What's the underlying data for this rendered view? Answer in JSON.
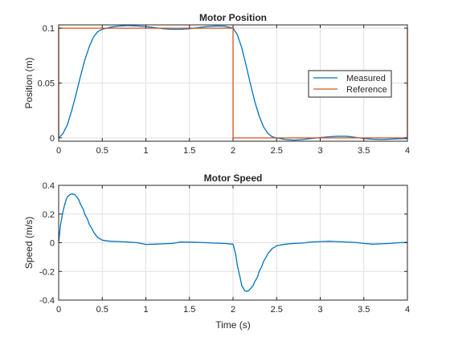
{
  "colors": {
    "measured": "#0072BD",
    "reference": "#D95319",
    "axis": "#262626",
    "grid": "#dfdfdf"
  },
  "chart_data": [
    {
      "type": "line",
      "title": "Motor Position",
      "xlabel": "",
      "ylabel": "Position (m)",
      "xlim": [
        0,
        4
      ],
      "ylim": [
        -0.003,
        0.103
      ],
      "xticks": [
        0,
        0.5,
        1,
        1.5,
        2,
        2.5,
        3,
        3.5,
        4
      ],
      "xticklabels": [
        "0",
        "0.5",
        "1",
        "1.5",
        "2",
        "2.5",
        "3",
        "3.5",
        "4"
      ],
      "yticks": [
        0,
        0.05,
        0.1
      ],
      "yticklabels": [
        "0",
        "0.05",
        "0.1"
      ],
      "grid": true,
      "legend": "center-right",
      "series": [
        {
          "name": "Measured",
          "color": "#0072BD",
          "x": [
            0,
            0.05,
            0.1,
            0.15,
            0.2,
            0.25,
            0.3,
            0.35,
            0.4,
            0.45,
            0.5,
            0.6,
            0.7,
            0.8,
            0.9,
            1.0,
            1.1,
            1.2,
            1.3,
            1.4,
            1.5,
            1.6,
            1.7,
            1.8,
            1.9,
            2.0,
            2.05,
            2.1,
            2.15,
            2.2,
            2.25,
            2.3,
            2.35,
            2.4,
            2.45,
            2.5,
            2.6,
            2.7,
            2.8,
            2.9,
            3.0,
            3.1,
            3.2,
            3.3,
            3.4,
            3.5,
            3.6,
            3.7,
            3.8,
            3.9,
            4.0
          ],
          "y": [
            0,
            0.004,
            0.012,
            0.025,
            0.04,
            0.056,
            0.071,
            0.083,
            0.092,
            0.097,
            0.099,
            0.101,
            0.102,
            0.1025,
            0.102,
            0.1015,
            0.1005,
            0.0995,
            0.099,
            0.099,
            0.0995,
            0.1005,
            0.1015,
            0.102,
            0.1018,
            0.1,
            0.094,
            0.082,
            0.066,
            0.049,
            0.033,
            0.02,
            0.01,
            0.004,
            0.001,
            0,
            -0.0015,
            -0.002,
            -0.0015,
            -0.0005,
            0.0003,
            0.001,
            0.0015,
            0.0015,
            0.0005,
            -0.0005,
            -0.0012,
            -0.0015,
            -0.0012,
            -0.0008,
            -0.0005
          ]
        },
        {
          "name": "Reference",
          "color": "#D95319",
          "x": [
            0,
            0,
            2,
            2,
            4,
            4
          ],
          "y": [
            0,
            0.1,
            0.1,
            0,
            0,
            0.1
          ]
        }
      ]
    },
    {
      "type": "line",
      "title": "Motor Speed",
      "xlabel": "Time (s)",
      "ylabel": "Speed (m/s)",
      "xlim": [
        0,
        4
      ],
      "ylim": [
        -0.4,
        0.4
      ],
      "xticks": [
        0,
        0.5,
        1,
        1.5,
        2,
        2.5,
        3,
        3.5,
        4
      ],
      "xticklabels": [
        "0",
        "0.5",
        "1",
        "1.5",
        "2",
        "2.5",
        "3",
        "3.5",
        "4"
      ],
      "yticks": [
        -0.4,
        -0.2,
        0,
        0.2,
        0.4
      ],
      "yticklabels": [
        "-0.4",
        "-0.2",
        "0",
        "0.2",
        "0.4"
      ],
      "grid": true,
      "series": [
        {
          "color": "#0072BD",
          "x": [
            0,
            0.02,
            0.05,
            0.08,
            0.1,
            0.13,
            0.15,
            0.18,
            0.2,
            0.23,
            0.25,
            0.28,
            0.3,
            0.33,
            0.35,
            0.38,
            0.4,
            0.43,
            0.45,
            0.48,
            0.5,
            0.55,
            0.6,
            0.7,
            0.8,
            0.9,
            1.0,
            1.1,
            1.2,
            1.3,
            1.4,
            1.5,
            1.6,
            1.7,
            1.8,
            1.9,
            2.0,
            2.03,
            2.05,
            2.08,
            2.1,
            2.13,
            2.15,
            2.18,
            2.2,
            2.23,
            2.25,
            2.28,
            2.3,
            2.33,
            2.35,
            2.38,
            2.4,
            2.43,
            2.45,
            2.48,
            2.5,
            2.55,
            2.6,
            2.7,
            2.8,
            2.9,
            3.0,
            3.1,
            3.2,
            3.3,
            3.4,
            3.5,
            3.6,
            3.7,
            3.8,
            3.9,
            4.0
          ],
          "y": [
            0,
            0.12,
            0.22,
            0.29,
            0.32,
            0.335,
            0.34,
            0.338,
            0.325,
            0.3,
            0.27,
            0.235,
            0.2,
            0.165,
            0.13,
            0.1,
            0.075,
            0.05,
            0.035,
            0.025,
            0.018,
            0.013,
            0.01,
            0.008,
            0.005,
            0.0,
            -0.012,
            -0.01,
            -0.008,
            -0.005,
            0.005,
            0.004,
            0.003,
            0.0,
            -0.003,
            -0.005,
            -0.01,
            -0.08,
            -0.16,
            -0.24,
            -0.3,
            -0.33,
            -0.34,
            -0.335,
            -0.32,
            -0.3,
            -0.27,
            -0.24,
            -0.2,
            -0.165,
            -0.13,
            -0.1,
            -0.075,
            -0.055,
            -0.04,
            -0.03,
            -0.022,
            -0.015,
            -0.01,
            -0.005,
            -0.002,
            0.005,
            0.008,
            0.01,
            0.008,
            0.005,
            0.002,
            -0.005,
            -0.01,
            -0.008,
            -0.005,
            0.0,
            0.003
          ]
        }
      ]
    }
  ]
}
